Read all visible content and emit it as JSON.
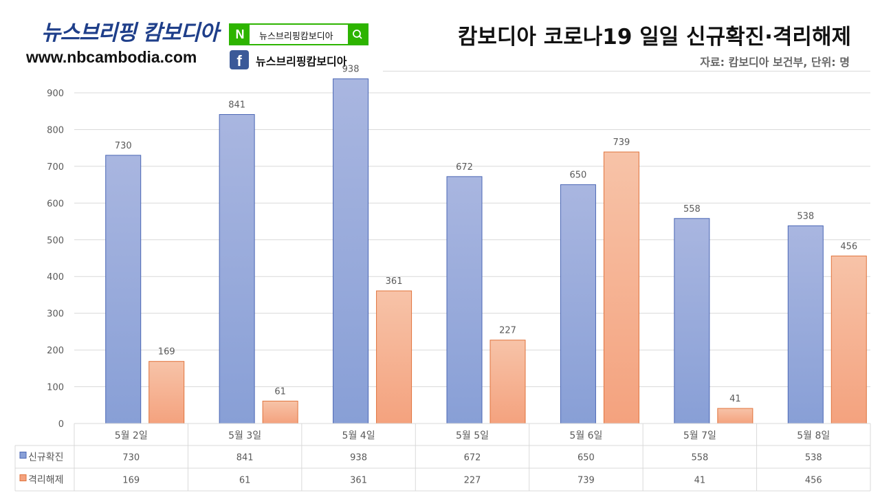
{
  "header": {
    "brand_title": "뉴스브리핑 캄보디아",
    "brand_url": "www.nbcambodia.com",
    "naver_search_text": "뉴스브리핑캄보디아",
    "naver_logo_letter": "N",
    "facebook_letter": "f",
    "facebook_text": "뉴스브리핑캄보디아"
  },
  "colors": {
    "naver_green": "#2db400",
    "facebook_blue": "#3b5998",
    "series_blue_top": "#a9b6e0",
    "series_blue_bottom": "#889fd6",
    "series_orange_top": "#f7c3a8",
    "series_orange_bottom": "#f4a27e"
  },
  "chart_data": {
    "type": "bar",
    "title": "캄보디아 코로나19 일일 신규확진·격리해제",
    "subtitle": "자료: 캄보디아 보건부, 단위: 명",
    "categories": [
      "5월 2일",
      "5월 3일",
      "5월 4일",
      "5월 5일",
      "5월 6일",
      "5월 7일",
      "5월 8일"
    ],
    "series": [
      {
        "name": "신규확진",
        "values": [
          730,
          841,
          938,
          672,
          650,
          558,
          538
        ]
      },
      {
        "name": "격리해제",
        "values": [
          169,
          61,
          361,
          227,
          739,
          41,
          456
        ]
      }
    ],
    "ylim": [
      0,
      900
    ],
    "yticks": [
      0,
      100,
      200,
      300,
      400,
      500,
      600,
      700,
      800,
      900
    ],
    "grid": true,
    "legend": "data-table-bottom"
  }
}
